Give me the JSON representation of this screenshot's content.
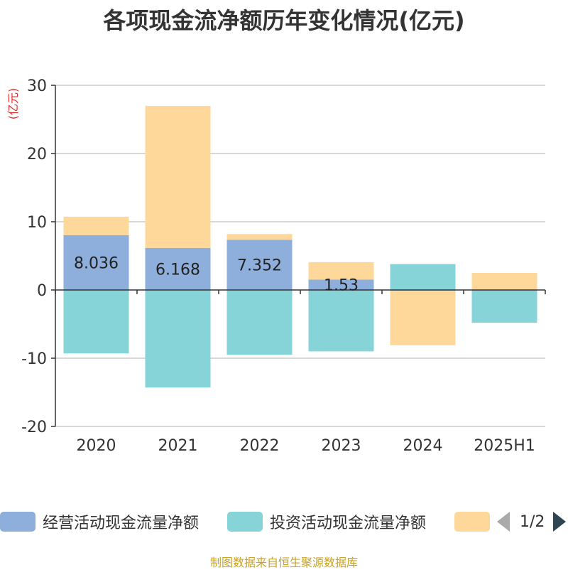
{
  "title": "各项现金流净额历年变化情况(亿元)",
  "source": "制图数据来自恒生聚源数据库",
  "legend_pager": "1/2",
  "colors": {
    "operating": "#8eaedb",
    "investing": "#86d4d8",
    "financing": "#fdd89a",
    "grid": "#cccccc",
    "axis": "#333333",
    "unit_label": "#e0302f"
  },
  "chart_data": {
    "type": "bar",
    "stacked": true,
    "title": "各项现金流净额历年变化情况(亿元)",
    "ylabel": "(亿元)",
    "xlabel": "",
    "categories": [
      "2020",
      "2021",
      "2022",
      "2023",
      "2024",
      "2025H1"
    ],
    "ylim": [
      -20,
      30
    ],
    "yticks": [
      -20,
      -10,
      0,
      10,
      20,
      30
    ],
    "grid": true,
    "legend_position": "bottom",
    "series": [
      {
        "name": "经营活动现金流量净额",
        "values": [
          8.036,
          6.168,
          7.352,
          1.53,
          -0.1,
          -0.1
        ],
        "labels": [
          "8.036",
          "6.168",
          "7.352",
          "1.53",
          "",
          ""
        ]
      },
      {
        "name": "投资活动现金流量净额",
        "values": [
          -9.3,
          -14.3,
          -9.5,
          -9.0,
          3.8,
          -4.7
        ],
        "labels": [
          "",
          "",
          "",
          "",
          "",
          ""
        ]
      },
      {
        "name": "",
        "values": [
          2.7,
          20.8,
          0.85,
          2.55,
          -8.0,
          2.5
        ],
        "labels": [
          "",
          "",
          "",
          "",
          "",
          ""
        ]
      }
    ]
  }
}
